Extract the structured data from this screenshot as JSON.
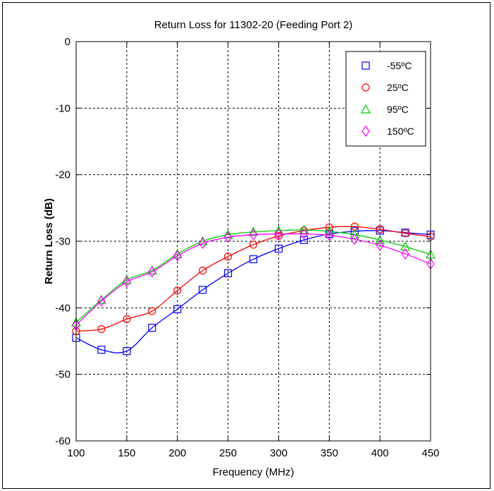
{
  "chart_data": {
    "type": "line",
    "title": "Return Loss for 11302-20 (Feeding Port 2)",
    "xlabel": "Frequency (MHz)",
    "ylabel": "Return Loss (dB)",
    "xlim": [
      100,
      450
    ],
    "ylim": [
      -60,
      0
    ],
    "xticks": [
      100,
      150,
      200,
      250,
      300,
      350,
      400,
      450
    ],
    "yticks": [
      0,
      -10,
      -20,
      -30,
      -40,
      -50,
      -60
    ],
    "grid": true,
    "legend_position": "top-right",
    "x": [
      100,
      125,
      150,
      175,
      200,
      225,
      250,
      275,
      300,
      325,
      350,
      375,
      400,
      425,
      450
    ],
    "series": [
      {
        "name": "-55ºC",
        "color": "#0000ff",
        "marker": "square",
        "values": [
          -44.5,
          -46.3,
          -46.5,
          -43.0,
          -40.2,
          -37.3,
          -34.8,
          -32.7,
          -31.1,
          -29.8,
          -28.9,
          -28.5,
          -28.4,
          -28.7,
          -29.0
        ]
      },
      {
        "name": "25ºC",
        "color": "#ff0000",
        "marker": "circle",
        "values": [
          -43.5,
          -43.2,
          -41.7,
          -40.5,
          -37.4,
          -34.4,
          -32.3,
          -30.5,
          -29.2,
          -28.4,
          -27.9,
          -27.8,
          -28.2,
          -28.8,
          -29.3
        ]
      },
      {
        "name": "95ºC",
        "color": "#00cc00",
        "marker": "triangle",
        "values": [
          -42.2,
          -38.8,
          -35.8,
          -34.4,
          -31.9,
          -30.0,
          -29.0,
          -28.6,
          -28.4,
          -28.3,
          -28.5,
          -29.0,
          -29.8,
          -30.8,
          -32.0
        ]
      },
      {
        "name": "150ºC",
        "color": "#ff00ff",
        "marker": "diamond",
        "values": [
          -42.6,
          -39.0,
          -36.1,
          -34.6,
          -32.2,
          -30.3,
          -29.4,
          -29.0,
          -28.9,
          -28.9,
          -29.1,
          -29.7,
          -30.6,
          -31.9,
          -33.4
        ]
      }
    ]
  }
}
